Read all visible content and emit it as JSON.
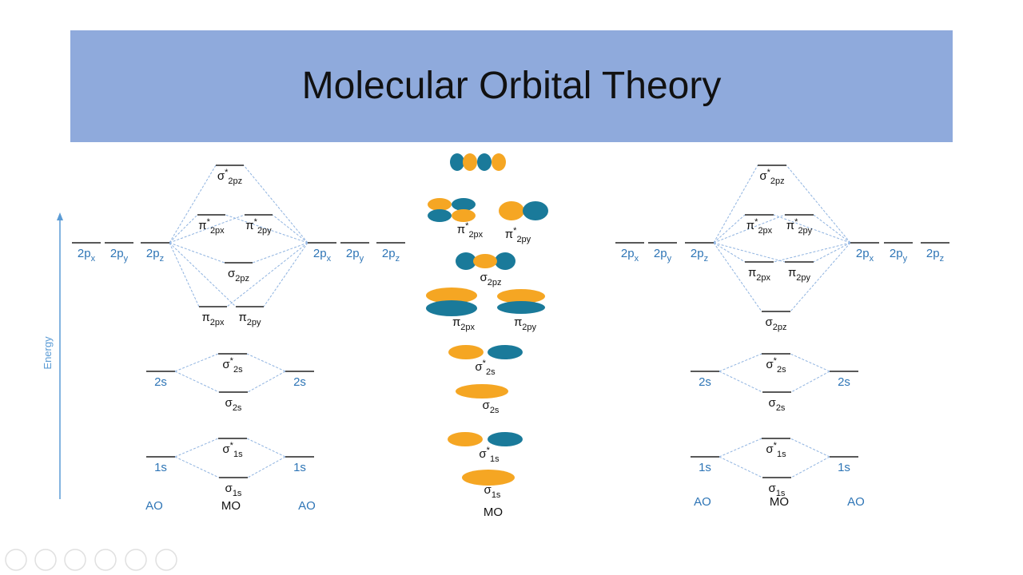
{
  "title": "Molecular Orbital Theory",
  "axis_label": "Energy",
  "left": {
    "levels": [
      {
        "base": "2p",
        "sub": "x"
      },
      {
        "base": "2p",
        "sub": "y"
      },
      {
        "base": "2p",
        "sub": "z"
      },
      {
        "base": "2p",
        "sub": "x"
      },
      {
        "base": "2p",
        "sub": "y"
      },
      {
        "base": "2p",
        "sub": "z"
      },
      {
        "base": "σ",
        "sup": "*",
        "sub": "2pz"
      },
      {
        "base": "π",
        "sup": "*",
        "sub": "2px"
      },
      {
        "base": "π",
        "sup": "*",
        "sub": "2py"
      },
      {
        "base": "σ",
        "sub": "2pz"
      },
      {
        "base": "π",
        "sub": "2px"
      },
      {
        "base": "π",
        "sub": "2py"
      },
      {
        "base": "2s"
      },
      {
        "base": "2s"
      },
      {
        "base": "σ",
        "sup": "*",
        "sub": "2s"
      },
      {
        "base": "σ",
        "sub": "2s"
      },
      {
        "base": "1s"
      },
      {
        "base": "1s"
      },
      {
        "base": "σ",
        "sup": "*",
        "sub": "1s"
      },
      {
        "base": "σ",
        "sub": "1s"
      }
    ],
    "footer": [
      "AO",
      "MO",
      "AO"
    ]
  },
  "middle": {
    "labels": [
      {
        "base": "π",
        "sup": "*",
        "sub": "2px"
      },
      {
        "base": "π",
        "sup": "*",
        "sub": "2py"
      },
      {
        "base": "σ",
        "sub": "2pz"
      },
      {
        "base": "π",
        "sub": "2px"
      },
      {
        "base": "π",
        "sub": "2py"
      },
      {
        "base": "σ",
        "sup": "*",
        "sub": "2s"
      },
      {
        "base": "σ",
        "sub": "2s"
      },
      {
        "base": "σ",
        "sup": "*",
        "sub": "1s"
      },
      {
        "base": "σ",
        "sub": "1s"
      }
    ],
    "footer": "MO"
  },
  "right": {
    "levels": [
      {
        "base": "2p",
        "sub": "x"
      },
      {
        "base": "2p",
        "sub": "y"
      },
      {
        "base": "2p",
        "sub": "z"
      },
      {
        "base": "2p",
        "sub": "x"
      },
      {
        "base": "2p",
        "sub": "y"
      },
      {
        "base": "2p",
        "sub": "z"
      },
      {
        "base": "σ",
        "sup": "*",
        "sub": "2pz"
      },
      {
        "base": "π",
        "sup": "*",
        "sub": "2px"
      },
      {
        "base": "π",
        "sup": "*",
        "sub": "2py"
      },
      {
        "base": "π",
        "sub": "2px"
      },
      {
        "base": "π",
        "sub": "2py"
      },
      {
        "base": "σ",
        "sub": "2pz"
      },
      {
        "base": "2s"
      },
      {
        "base": "2s"
      },
      {
        "base": "σ",
        "sup": "*",
        "sub": "2s"
      },
      {
        "base": "σ",
        "sub": "2s"
      },
      {
        "base": "1s"
      },
      {
        "base": "1s"
      },
      {
        "base": "σ",
        "sup": "*",
        "sub": "1s"
      },
      {
        "base": "σ",
        "sub": "1s"
      }
    ],
    "footer": [
      "AO",
      "MO",
      "AO"
    ]
  }
}
